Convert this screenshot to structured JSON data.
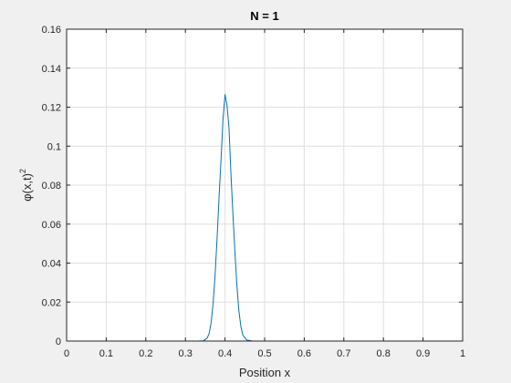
{
  "chart_data": {
    "type": "line",
    "title": "N = 1",
    "xlabel": "Position x",
    "ylabel_main": "φ(x,t)",
    "ylabel_sup": "2",
    "xlim": [
      0,
      1
    ],
    "ylim": [
      0,
      0.16
    ],
    "xticks": [
      0,
      0.1,
      0.2,
      0.3,
      0.4,
      0.5,
      0.6,
      0.7,
      0.8,
      0.9,
      1
    ],
    "xtick_labels": [
      "0",
      "0.1",
      "0.2",
      "0.3",
      "0.4",
      "0.5",
      "0.6",
      "0.7",
      "0.8",
      "0.9",
      "1"
    ],
    "yticks": [
      0,
      0.02,
      0.04,
      0.06,
      0.08,
      0.1,
      0.12,
      0.14,
      0.16
    ],
    "ytick_labels": [
      "0",
      "0.02",
      "0.04",
      "0.06",
      "0.08",
      "0.1",
      "0.12",
      "0.14",
      "0.16"
    ],
    "grid": true,
    "line_color": "#0072bd",
    "series": [
      {
        "x": [
          0,
          0.1,
          0.2,
          0.3,
          0.33,
          0.345,
          0.355,
          0.36,
          0.365,
          0.37,
          0.375,
          0.38,
          0.385,
          0.39,
          0.395,
          0.4,
          0.405,
          0.41,
          0.415,
          0.42,
          0.425,
          0.43,
          0.435,
          0.44,
          0.445,
          0.455,
          0.47,
          0.5,
          0.6,
          0.7,
          0.8,
          0.9,
          1
        ],
        "y": [
          0,
          0,
          0,
          0,
          0,
          0.0001,
          0.0015,
          0.004,
          0.0095,
          0.0195,
          0.034,
          0.053,
          0.074,
          0.0935,
          0.114,
          0.1265,
          0.121,
          0.1095,
          0.0855,
          0.065,
          0.0455,
          0.0285,
          0.0155,
          0.0075,
          0.003,
          0.0005,
          0,
          0,
          0,
          0,
          0,
          0,
          0
        ]
      }
    ]
  }
}
